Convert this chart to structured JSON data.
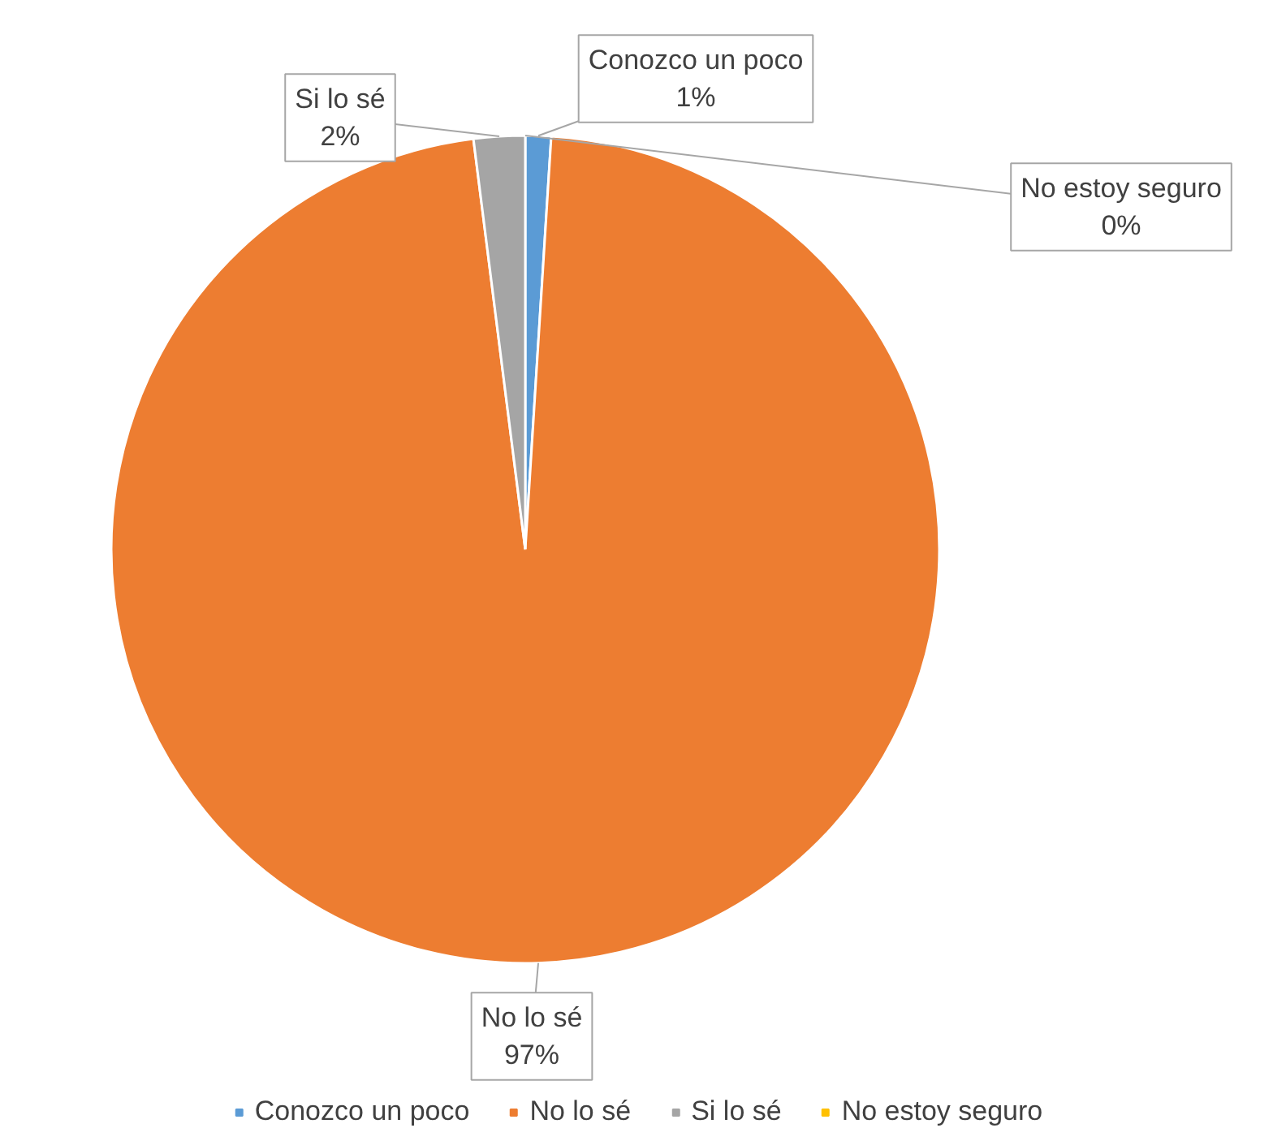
{
  "chart_data": {
    "type": "pie",
    "categories": [
      "Conozco un poco",
      "No lo sé",
      "Si lo sé",
      "No estoy seguro"
    ],
    "values": [
      1,
      97,
      2,
      0
    ],
    "colors": [
      "#5b9bd5",
      "#ed7d31",
      "#a5a5a5",
      "#ffc000"
    ],
    "value_labels": [
      "1%",
      "97%",
      "2%",
      "0%"
    ],
    "legend": "bottom"
  }
}
